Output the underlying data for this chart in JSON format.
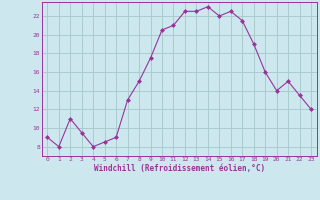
{
  "x": [
    0,
    1,
    2,
    3,
    4,
    5,
    6,
    7,
    8,
    9,
    10,
    11,
    12,
    13,
    14,
    15,
    16,
    17,
    18,
    19,
    20,
    21,
    22,
    23
  ],
  "y": [
    9,
    8,
    11,
    9.5,
    8,
    8.5,
    9,
    13,
    15,
    17.5,
    20.5,
    21,
    22.5,
    22.5,
    23,
    22,
    22.5,
    21.5,
    19,
    16,
    14,
    15,
    13.5,
    12
  ],
  "line_color": "#993399",
  "marker": "D",
  "marker_size": 2,
  "background_color": "#cce8ee",
  "grid_color": "#aacccc",
  "xlabel": "Windchill (Refroidissement éolien,°C)",
  "xlabel_color": "#993399",
  "tick_color": "#993399",
  "ylabel_ticks": [
    8,
    10,
    12,
    14,
    16,
    18,
    20,
    22
  ],
  "xlim": [
    -0.5,
    23.5
  ],
  "ylim": [
    7.0,
    23.5
  ]
}
